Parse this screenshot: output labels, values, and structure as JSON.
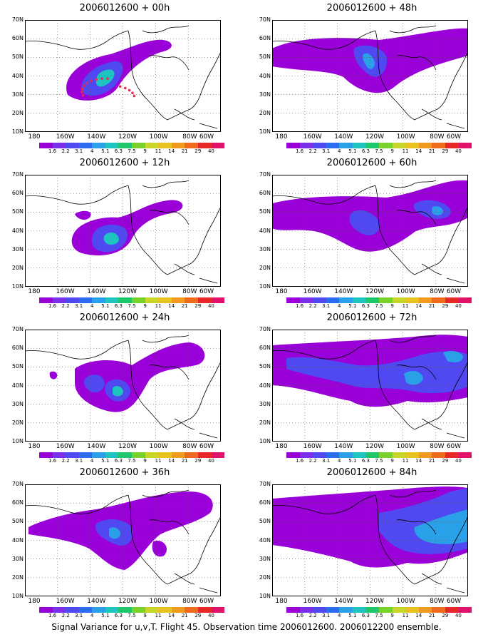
{
  "caption": "Signal Variance for u,v,T. Flight 45. Observation time 2006012600. 2006012200 ensemble.",
  "lat_labels": [
    "70N",
    "60N",
    "50N",
    "40N",
    "30N",
    "20N",
    "10N"
  ],
  "lon_labels": [
    "180",
    "160W",
    "140W",
    "120W",
    "100W",
    "80W",
    "60W"
  ],
  "colorbar": {
    "colors": [
      "#9a00d8",
      "#7b2fe8",
      "#5048f0",
      "#2c6cf0",
      "#2aa0e8",
      "#1ec4c0",
      "#1ec86a",
      "#78d22a",
      "#c8d62a",
      "#e8c21e",
      "#f09a1e",
      "#f06a1e",
      "#e82828",
      "#e0126a"
    ],
    "levels": [
      "1.6",
      "2.2",
      "3.1",
      "4",
      "5.1",
      "6.3",
      "7.5",
      "9",
      "11",
      "14",
      "21",
      "29",
      "40"
    ]
  },
  "panels": [
    {
      "title": "2006012600 + 00h"
    },
    {
      "title": "2006012600 + 48h"
    },
    {
      "title": "2006012600 + 12h"
    },
    {
      "title": "2006012600 + 60h"
    },
    {
      "title": "2006012600 + 24h"
    },
    {
      "title": "2006012600 + 72h"
    },
    {
      "title": "2006012600 + 36h"
    },
    {
      "title": "2006012600 + 84h"
    }
  ]
}
